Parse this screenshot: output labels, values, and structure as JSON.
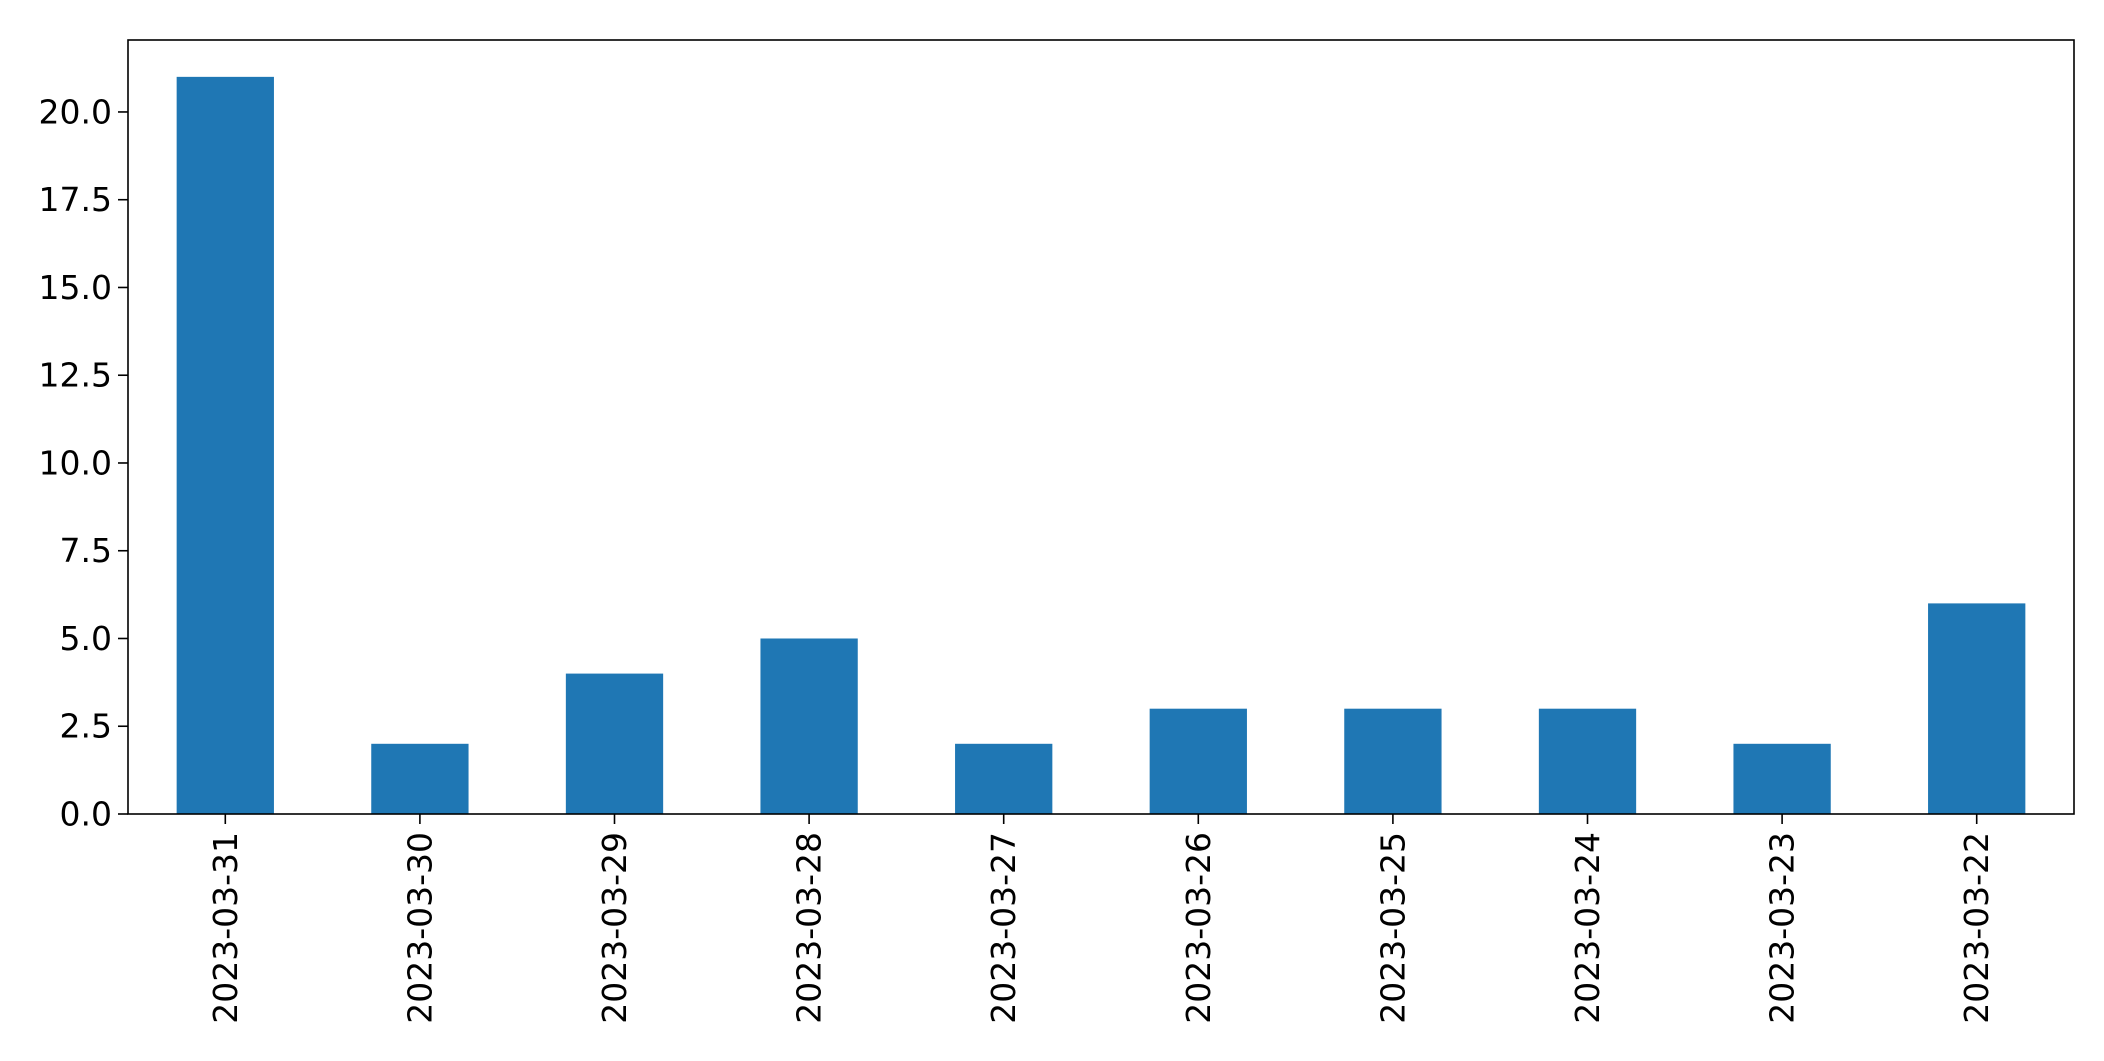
{
  "chart_data": {
    "type": "bar",
    "title": "",
    "xlabel": "",
    "ylabel": "",
    "categories": [
      "2023-03-31",
      "2023-03-30",
      "2023-03-29",
      "2023-03-28",
      "2023-03-27",
      "2023-03-26",
      "2023-03-25",
      "2023-03-24",
      "2023-03-23",
      "2023-03-22"
    ],
    "values": [
      21,
      2,
      4,
      5,
      2,
      3,
      3,
      3,
      2,
      6
    ],
    "ylim": [
      0,
      22.05
    ],
    "yticks": [
      "0.0",
      "2.5",
      "5.0",
      "7.5",
      "10.0",
      "12.5",
      "15.0",
      "17.5",
      "20.0"
    ],
    "bar_color": "#1f77b4",
    "grid": false,
    "legend": "none"
  }
}
